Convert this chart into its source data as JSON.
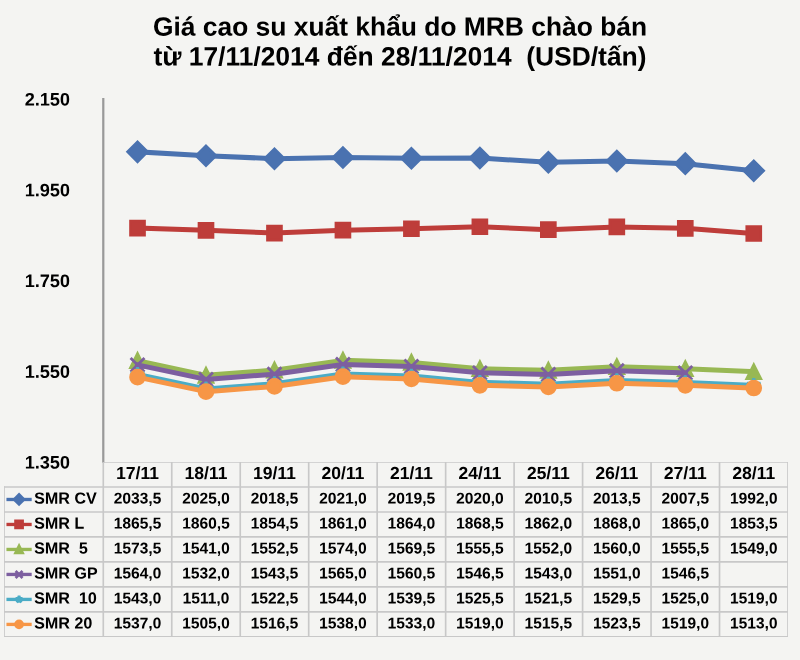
{
  "chart_data": {
    "type": "line",
    "title": "Giá cao su xuất khẩu do MRB chào bán\ntừ 17/11/2014 đến 28/11/2014  (USD/tấn)",
    "categories": [
      "17/11",
      "18/11",
      "19/11",
      "20/11",
      "21/11",
      "24/11",
      "25/11",
      "26/11",
      "27/11",
      "28/11"
    ],
    "ylim": [
      1350,
      2150
    ],
    "yticks": [
      {
        "value": 1350,
        "label": "1.350"
      },
      {
        "value": 1550,
        "label": "1.550"
      },
      {
        "value": 1750,
        "label": "1.750"
      },
      {
        "value": 1950,
        "label": "1.950"
      },
      {
        "value": 2150,
        "label": "2.150"
      }
    ],
    "grid": false,
    "legend": "bottom",
    "line_style": "solid",
    "series": [
      {
        "name": "SMR CV",
        "color": "#4a72b0",
        "marker": "diamond",
        "values": [
          2033.5,
          2025.0,
          2018.5,
          2021.0,
          2019.5,
          2020.0,
          2010.5,
          2013.5,
          2007.5,
          1992.0
        ],
        "value_labels": [
          "2033,5",
          "2025,0",
          "2018,5",
          "2021,0",
          "2019,5",
          "2020,0",
          "2010,5",
          "2013,5",
          "2007,5",
          "1992,0"
        ]
      },
      {
        "name": "SMR L",
        "color": "#be3d3a",
        "marker": "square",
        "values": [
          1865.5,
          1860.5,
          1854.5,
          1861.0,
          1864.0,
          1868.5,
          1862.0,
          1868.0,
          1865.0,
          1853.5
        ],
        "value_labels": [
          "1865,5",
          "1860,5",
          "1854,5",
          "1861,0",
          "1864,0",
          "1868,5",
          "1862,0",
          "1868,0",
          "1865,0",
          "1853,5"
        ]
      },
      {
        "name": "SMR  5",
        "color": "#98b854",
        "marker": "triangle",
        "values": [
          1573.5,
          1541.0,
          1552.5,
          1574.0,
          1569.5,
          1555.5,
          1552.0,
          1560.0,
          1555.5,
          1549.0
        ],
        "value_labels": [
          "1573,5",
          "1541,0",
          "1552,5",
          "1574,0",
          "1569,5",
          "1555,5",
          "1552,0",
          "1560,0",
          "1555,5",
          "1549,0"
        ]
      },
      {
        "name": "SMR GP",
        "color": "#7d5fa0",
        "marker": "cross",
        "values": [
          1564.0,
          1532.0,
          1543.5,
          1565.0,
          1560.5,
          1546.5,
          1543.0,
          1551.0,
          1546.5,
          null
        ],
        "value_labels": [
          "1564,0",
          "1532,0",
          "1543,5",
          "1565,0",
          "1560,5",
          "1546,5",
          "1543,0",
          "1551,0",
          "1546,5",
          null
        ]
      },
      {
        "name": "SMR  10",
        "color": "#4bacc6",
        "marker": "star",
        "values": [
          1543.0,
          1511.0,
          1522.5,
          1544.0,
          1539.5,
          1525.5,
          1521.5,
          1529.5,
          1525.0,
          1519.0
        ],
        "value_labels": [
          "1543,0",
          "1511,0",
          "1522,5",
          "1544,0",
          "1539,5",
          "1525,5",
          "1521,5",
          "1529,5",
          "1525,0",
          "1519,0"
        ]
      },
      {
        "name": "SMR 20",
        "color": "#f79646",
        "marker": "circle",
        "values": [
          1537.0,
          1505.0,
          1516.5,
          1538.0,
          1533.0,
          1519.0,
          1515.5,
          1523.5,
          1519.0,
          1513.0
        ],
        "value_labels": [
          "1537,0",
          "1505,0",
          "1516,5",
          "1538,0",
          "1533,0",
          "1519,0",
          "1515,5",
          "1523,5",
          "1519,0",
          "1513,0"
        ]
      }
    ]
  }
}
